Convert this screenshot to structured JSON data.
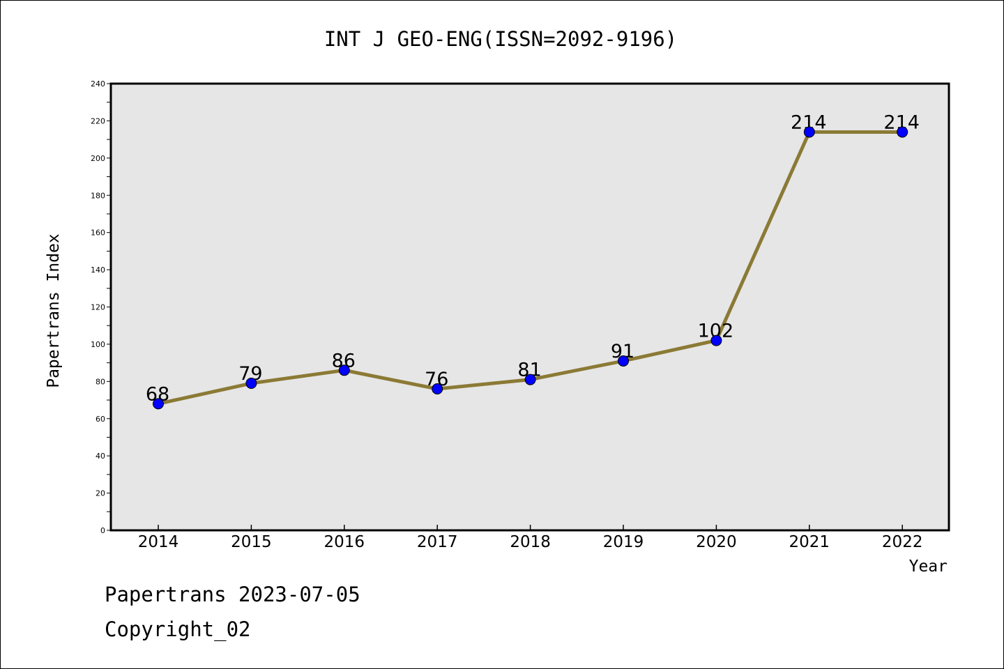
{
  "chart_data": {
    "type": "line",
    "title": "INT J GEO-ENG(ISSN=2092-9196)",
    "xlabel": "Year",
    "ylabel": "Papertrans Index",
    "categories": [
      "2014",
      "2015",
      "2016",
      "2017",
      "2018",
      "2019",
      "2020",
      "2021",
      "2022"
    ],
    "values": [
      68,
      79,
      86,
      76,
      81,
      91,
      102,
      214,
      214
    ],
    "ylim": [
      0,
      240
    ],
    "yticks": [
      0,
      20,
      40,
      60,
      80,
      100,
      120,
      140,
      160,
      180,
      200,
      220,
      240
    ],
    "grid": false,
    "plot_background": "#e6e6e6",
    "line_color": "#8b7a35",
    "marker_color": "#0000ff"
  },
  "footer": {
    "line1": "Papertrans 2023-07-05",
    "line2": "Copyright_02"
  }
}
